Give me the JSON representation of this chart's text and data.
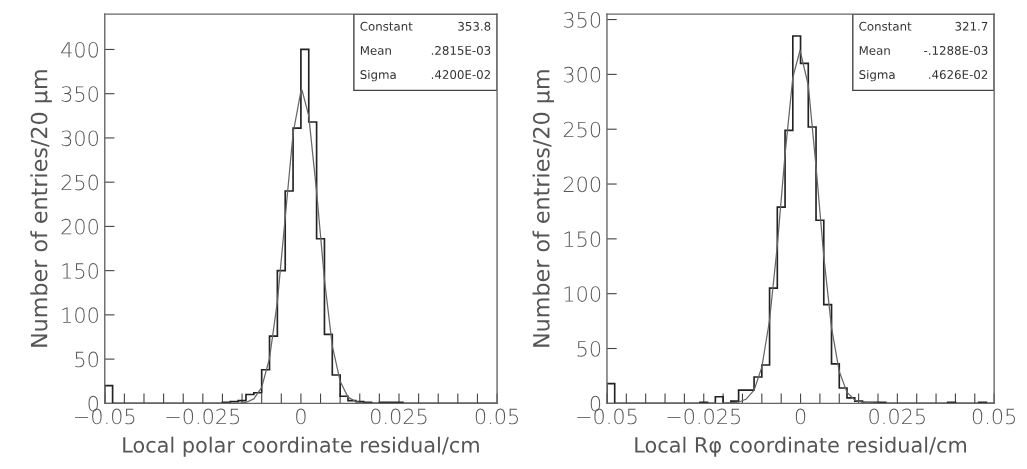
{
  "chart_data": [
    {
      "type": "histogram",
      "xlabel": "Local polar coordinate residual/cm",
      "ylabel": "Number of entries/20 μm",
      "xlim": [
        -0.05,
        0.05
      ],
      "xticks": [
        {
          "value": -0.05,
          "label": "−0.05"
        },
        {
          "value": -0.045,
          "label": null
        },
        {
          "value": -0.04,
          "label": null
        },
        {
          "value": -0.035,
          "label": null
        },
        {
          "value": -0.03,
          "label": null
        },
        {
          "value": -0.025,
          "label": "−0.025"
        },
        {
          "value": -0.02,
          "label": null
        },
        {
          "value": -0.015,
          "label": null
        },
        {
          "value": -0.01,
          "label": null
        },
        {
          "value": -0.005,
          "label": null
        },
        {
          "value": 0,
          "label": "0"
        },
        {
          "value": 0.005,
          "label": null
        },
        {
          "value": 0.01,
          "label": null
        },
        {
          "value": 0.015,
          "label": null
        },
        {
          "value": 0.02,
          "label": null
        },
        {
          "value": 0.025,
          "label": "0.025"
        },
        {
          "value": 0.03,
          "label": null
        },
        {
          "value": 0.035,
          "label": null
        },
        {
          "value": 0.04,
          "label": null
        },
        {
          "value": 0.045,
          "label": null
        },
        {
          "value": 0.05,
          "label": "0.05"
        }
      ],
      "ylim": [
        0,
        440
      ],
      "yticks": [
        0,
        50,
        100,
        150,
        200,
        250,
        300,
        350,
        400
      ],
      "annotations": [
        "Constant",
        "353.8",
        "Mean",
        ".2815E-03",
        "Sigma",
        ".4200E-02"
      ],
      "series": [
        {
          "color": "#222222",
          "bins": [
            -0.05,
            -0.048,
            -0.046,
            -0.044,
            -0.042,
            -0.04,
            -0.038,
            -0.036,
            -0.034,
            -0.032,
            -0.03,
            -0.028,
            -0.026,
            -0.024,
            -0.022,
            -0.02,
            -0.018,
            -0.016,
            -0.014,
            -0.012,
            -0.01,
            -0.008,
            -0.006,
            -0.004,
            -0.002,
            0,
            0.002,
            0.004,
            0.006,
            0.008,
            0.01,
            0.012,
            0.014,
            0.016,
            0.018,
            0.02,
            0.022,
            0.024,
            0.026,
            0.028,
            0.03,
            0.032,
            0.034,
            0.036,
            0.038,
            0.04,
            0.042,
            0.044,
            0.046,
            0.048,
            0.05
          ],
          "values": [
            20,
            0,
            0,
            0,
            0,
            0,
            0,
            0,
            0,
            0,
            0,
            0,
            0,
            0,
            0,
            1,
            2,
            3,
            10,
            12,
            38,
            76,
            150,
            240,
            311,
            400,
            318,
            186,
            78,
            32,
            8,
            3,
            2,
            1,
            0,
            1,
            1,
            1,
            0,
            0,
            0,
            0,
            0,
            0,
            0,
            0,
            0,
            0,
            0,
            0
          ]
        },
        {
          "type": "line",
          "color": "#666666",
          "x": [
            -0.02,
            -0.016,
            -0.014,
            -0.012,
            -0.01,
            -0.008,
            -0.006,
            -0.004,
            -0.002,
            0,
            0.00028,
            0.002,
            0.004,
            0.006,
            0.008,
            0.01,
            0.012,
            0.014,
            0.016,
            0.02
          ],
          "values": [
            0,
            0,
            1,
            5,
            18,
            51,
            115,
            210,
            305,
            353,
            354,
            325,
            239,
            140,
            65,
            25,
            7,
            2,
            0,
            0
          ]
        }
      ]
    },
    {
      "type": "histogram",
      "xlabel": "Local Rφ coordinate residual/cm",
      "ylabel": "Number of entries/20 μm",
      "xlim": [
        -0.05,
        0.05
      ],
      "xticks": [
        {
          "value": -0.05,
          "label": "−0.05"
        },
        {
          "value": -0.045,
          "label": null
        },
        {
          "value": -0.04,
          "label": null
        },
        {
          "value": -0.035,
          "label": null
        },
        {
          "value": -0.03,
          "label": null
        },
        {
          "value": -0.025,
          "label": "−0.025"
        },
        {
          "value": -0.02,
          "label": null
        },
        {
          "value": -0.015,
          "label": null
        },
        {
          "value": -0.01,
          "label": null
        },
        {
          "value": -0.005,
          "label": null
        },
        {
          "value": 0,
          "label": "0"
        },
        {
          "value": 0.005,
          "label": null
        },
        {
          "value": 0.01,
          "label": null
        },
        {
          "value": 0.015,
          "label": null
        },
        {
          "value": 0.02,
          "label": null
        },
        {
          "value": 0.025,
          "label": "0.025"
        },
        {
          "value": 0.03,
          "label": null
        },
        {
          "value": 0.035,
          "label": null
        },
        {
          "value": 0.04,
          "label": null
        },
        {
          "value": 0.045,
          "label": null
        },
        {
          "value": 0.05,
          "label": "0.05"
        }
      ],
      "ylim": [
        0,
        355
      ],
      "yticks": [
        0,
        50,
        100,
        150,
        200,
        250,
        300,
        350
      ],
      "annotations": [
        "Constant",
        "321.7",
        "Mean",
        "-.1288E-03",
        "Sigma",
        ".4626E-02"
      ],
      "series": [
        {
          "color": "#222222",
          "bins": [
            -0.05,
            -0.048,
            -0.046,
            -0.044,
            -0.042,
            -0.04,
            -0.038,
            -0.036,
            -0.034,
            -0.032,
            -0.03,
            -0.028,
            -0.026,
            -0.024,
            -0.022,
            -0.02,
            -0.018,
            -0.016,
            -0.014,
            -0.012,
            -0.01,
            -0.008,
            -0.006,
            -0.004,
            -0.002,
            0,
            0.002,
            0.004,
            0.006,
            0.008,
            0.01,
            0.012,
            0.014,
            0.016,
            0.018,
            0.02,
            0.022,
            0.024,
            0.026,
            0.028,
            0.03,
            0.032,
            0.034,
            0.036,
            0.038,
            0.04,
            0.042,
            0.044,
            0.046,
            0.048,
            0.05
          ],
          "values": [
            18,
            0,
            0,
            0,
            0,
            0,
            0,
            0,
            0,
            0,
            0,
            0,
            1,
            0,
            6,
            0,
            2,
            12,
            12,
            24,
            35,
            105,
            179,
            249,
            335,
            310,
            252,
            167,
            90,
            36,
            14,
            5,
            2,
            1,
            1,
            1,
            0,
            0,
            0,
            0,
            0,
            0,
            0,
            0,
            1,
            0,
            0,
            0,
            1,
            0
          ]
        },
        {
          "type": "line",
          "color": "#666666",
          "x": [
            -0.02,
            -0.016,
            -0.014,
            -0.012,
            -0.01,
            -0.008,
            -0.006,
            -0.004,
            -0.002,
            -0.000129,
            0.002,
            0.004,
            0.006,
            0.008,
            0.01,
            0.012,
            0.014,
            0.016,
            0.02
          ],
          "values": [
            0,
            1,
            4,
            12,
            33,
            76,
            144,
            227,
            297,
            322,
            290,
            216,
            134,
            69,
            29,
            10,
            3,
            1,
            0
          ]
        }
      ]
    }
  ]
}
